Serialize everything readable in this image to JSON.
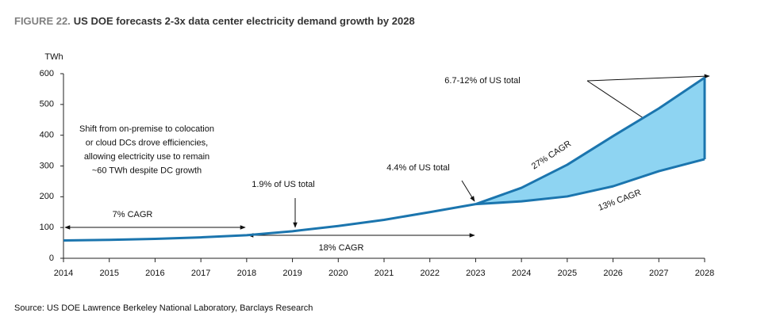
{
  "chart_data": {
    "type": "line",
    "figure_label": "FIGURE 22.",
    "title": "US DOE forecasts 2-3x data center electricity demand growth by 2028",
    "ylabel": "TWh",
    "source": "Source: US DOE Lawrence Berkeley National Laboratory, Barclays Research",
    "x": [
      2014,
      2015,
      2016,
      2017,
      2018,
      2019,
      2020,
      2021,
      2022,
      2023,
      2024,
      2025,
      2026,
      2027,
      2028
    ],
    "xlim": [
      2014,
      2028
    ],
    "xticks": [
      2014,
      2015,
      2016,
      2017,
      2018,
      2019,
      2020,
      2021,
      2022,
      2023,
      2024,
      2025,
      2026,
      2027,
      2028
    ],
    "ylim": [
      0,
      600
    ],
    "yticks": [
      0,
      100,
      200,
      300,
      400,
      500,
      600
    ],
    "grid": false,
    "band_color": "#8ed4f2",
    "series": [
      {
        "color": "#1b75ae",
        "values": [
          58,
          60,
          63,
          68,
          75,
          88,
          105,
          125,
          150,
          176,
          null,
          null,
          null,
          null,
          null
        ]
      },
      {
        "color": "#1b75ae",
        "values": [
          null,
          null,
          null,
          null,
          null,
          null,
          null,
          null,
          null,
          176,
          229,
          304,
          397,
          487,
          587
        ]
      },
      {
        "color": "#1b75ae",
        "values": [
          null,
          null,
          null,
          null,
          null,
          null,
          null,
          null,
          null,
          176,
          185,
          201,
          234,
          283,
          322
        ]
      }
    ],
    "annotations": [
      "7% CAGR",
      "18% CAGR",
      "1.9% of US total",
      "4.4% of US total",
      "27% CAGR",
      "13% CAGR",
      "6.7-12% of US total"
    ],
    "note_lines": [
      "Shift from on-premise to colocation",
      "or cloud DCs drove efficiencies,",
      "allowing electricity use to remain",
      "~60 TWh despite DC growth"
    ]
  }
}
